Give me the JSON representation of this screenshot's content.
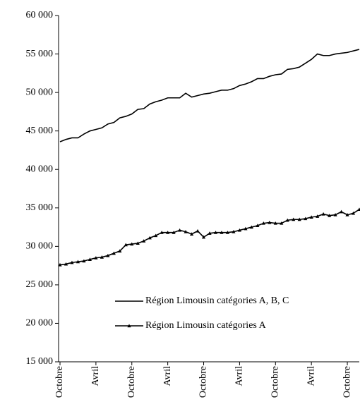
{
  "chart_data": {
    "type": "line",
    "categories": [
      "Octobre",
      null,
      null,
      null,
      null,
      null,
      "Avril",
      null,
      null,
      null,
      null,
      null,
      "Octobre",
      null,
      null,
      null,
      null,
      null,
      "Avril",
      null,
      null,
      null,
      null,
      null,
      "Octobre",
      null,
      null,
      null,
      null,
      null,
      "Avril",
      null,
      null,
      null,
      null,
      null,
      "Octobre",
      null,
      null,
      null,
      null,
      null,
      "Avril",
      null,
      null,
      null,
      null,
      null,
      "Octobre",
      null,
      null
    ],
    "series": [
      {
        "name": "Région Limousin catégories A, B, C",
        "color": "#000000",
        "marker": "none",
        "values": [
          43600,
          43900,
          44100,
          44100,
          44600,
          45000,
          45200,
          45400,
          45900,
          46100,
          46700,
          46900,
          47200,
          47800,
          47900,
          48500,
          48800,
          49000,
          49300,
          49300,
          49300,
          49900,
          49400,
          49600,
          49800,
          49900,
          50100,
          50300,
          50300,
          50500,
          50900,
          51100,
          51400,
          51800,
          51800,
          52100,
          52300,
          52400,
          53000,
          53100,
          53300,
          53800,
          54300,
          55000,
          54800,
          54800,
          55000,
          55100,
          55200,
          55400,
          55600
        ]
      },
      {
        "name": "Région Limousin catégories A",
        "color": "#000000",
        "marker": "triangle",
        "values": [
          27600,
          27700,
          27900,
          28000,
          28100,
          28300,
          28500,
          28600,
          28800,
          29100,
          29400,
          30200,
          30300,
          30400,
          30700,
          31100,
          31400,
          31800,
          31800,
          31800,
          32100,
          31900,
          31600,
          32000,
          31200,
          31700,
          31800,
          31800,
          31800,
          31900,
          32100,
          32300,
          32500,
          32700,
          33000,
          33100,
          33000,
          33000,
          33400,
          33500,
          33500,
          33600,
          33800,
          33900,
          34200,
          34000,
          34100,
          34500,
          34100,
          34300,
          34800
        ]
      }
    ],
    "ylim": [
      15000,
      60000
    ],
    "yticks": [
      {
        "value": 15000,
        "label": "15 000"
      },
      {
        "value": 20000,
        "label": "20 000"
      },
      {
        "value": 25000,
        "label": "25 000"
      },
      {
        "value": 30000,
        "label": "30 000"
      },
      {
        "value": 35000,
        "label": "35 000"
      },
      {
        "value": 40000,
        "label": "40 000"
      },
      {
        "value": 45000,
        "label": "45 000"
      },
      {
        "value": 50000,
        "label": "50 000"
      },
      {
        "value": 55000,
        "label": "55 000"
      },
      {
        "value": 60000,
        "label": "60 000"
      }
    ],
    "grid": false,
    "legend": "center-left"
  }
}
